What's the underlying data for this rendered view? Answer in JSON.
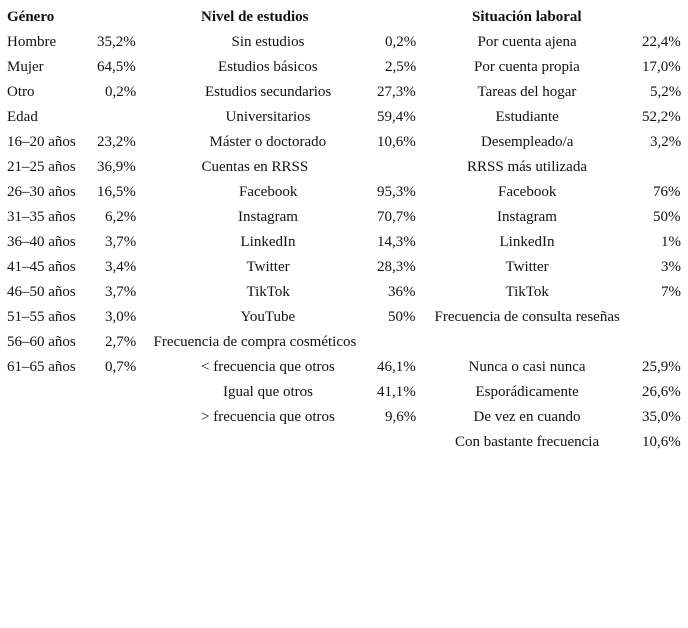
{
  "columns": [
    {
      "header": "Género",
      "rows": [
        {
          "label": "Hombre",
          "value": "35,2%"
        },
        {
          "label": "Mujer",
          "value": "64,5%"
        },
        {
          "label": "Otro",
          "value": "0,2%"
        },
        {
          "label": "Edad"
        },
        {
          "label": "16–20 años",
          "value": "23,2%"
        },
        {
          "label": "21–25 años",
          "value": "36,9%"
        },
        {
          "label": "26–30 años",
          "value": "16,5%"
        },
        {
          "label": "31–35 años",
          "value": "6,2%"
        },
        {
          "label": "36–40 años",
          "value": "3,7%"
        },
        {
          "label": "41–45 años",
          "value": "3,4%"
        },
        {
          "label": "46–50 años",
          "value": "3,7%"
        },
        {
          "label": "51–55 años",
          "value": "3,0%"
        },
        {
          "label": "56–60 años",
          "value": "2,7%"
        },
        {
          "label": "61–65 años",
          "value": "0,7%"
        }
      ]
    },
    {
      "header": "Nivel de estudios",
      "rows": [
        {
          "label": "Sin estudios",
          "value": "0,2%"
        },
        {
          "label": "Estudios básicos",
          "value": "2,5%"
        },
        {
          "label": "Estudios secundarios",
          "value": "27,3%"
        },
        {
          "label": "Universitarios",
          "value": "59,4%"
        },
        {
          "label": "Máster o doctorado",
          "value": "10,6%"
        },
        {
          "label": "Cuentas en RRSS"
        },
        {
          "label": "Facebook",
          "value": "95,3%"
        },
        {
          "label": "Instagram",
          "value": "70,7%"
        },
        {
          "label": "LinkedIn",
          "value": "14,3%"
        },
        {
          "label": "Twitter",
          "value": "28,3%"
        },
        {
          "label": "TikTok",
          "value": "36%"
        },
        {
          "label": "YouTube",
          "value": "50%"
        },
        {
          "label": "Frecuencia de compra cosméticos"
        },
        {
          "label": "< frecuencia que otros",
          "value": "46,1%"
        },
        {
          "label": "Igual que otros",
          "value": "41,1%"
        },
        {
          "label": "> frecuencia que otros",
          "value": "9,6%"
        }
      ]
    },
    {
      "header": "Situación laboral",
      "rows": [
        {
          "label": "Por cuenta ajena",
          "value": "22,4%"
        },
        {
          "label": "Por cuenta propia",
          "value": "17,0%"
        },
        {
          "label": "Tareas del hogar",
          "value": "5,2%"
        },
        {
          "label": "Estudiante",
          "value": "52,2%"
        },
        {
          "label": "Desempleado/a",
          "value": "3,2%"
        },
        {
          "label": "RRSS más utilizada"
        },
        {
          "label": "Facebook",
          "value": "76%"
        },
        {
          "label": "Instagram",
          "value": "50%"
        },
        {
          "label": "LinkedIn",
          "value": "1%"
        },
        {
          "label": "Twitter",
          "value": "3%"
        },
        {
          "label": "TikTok",
          "value": "7%"
        },
        {
          "label": "Frecuencia de consulta reseñas"
        },
        null,
        {
          "label": "Nunca o casi nunca",
          "value": "25,9%"
        },
        {
          "label": "Esporádicamente",
          "value": "26,6%"
        },
        {
          "label": "De vez en cuando",
          "value": "35,0%"
        },
        {
          "label": "Con bastante frecuencia",
          "value": "10,6%"
        }
      ]
    }
  ]
}
